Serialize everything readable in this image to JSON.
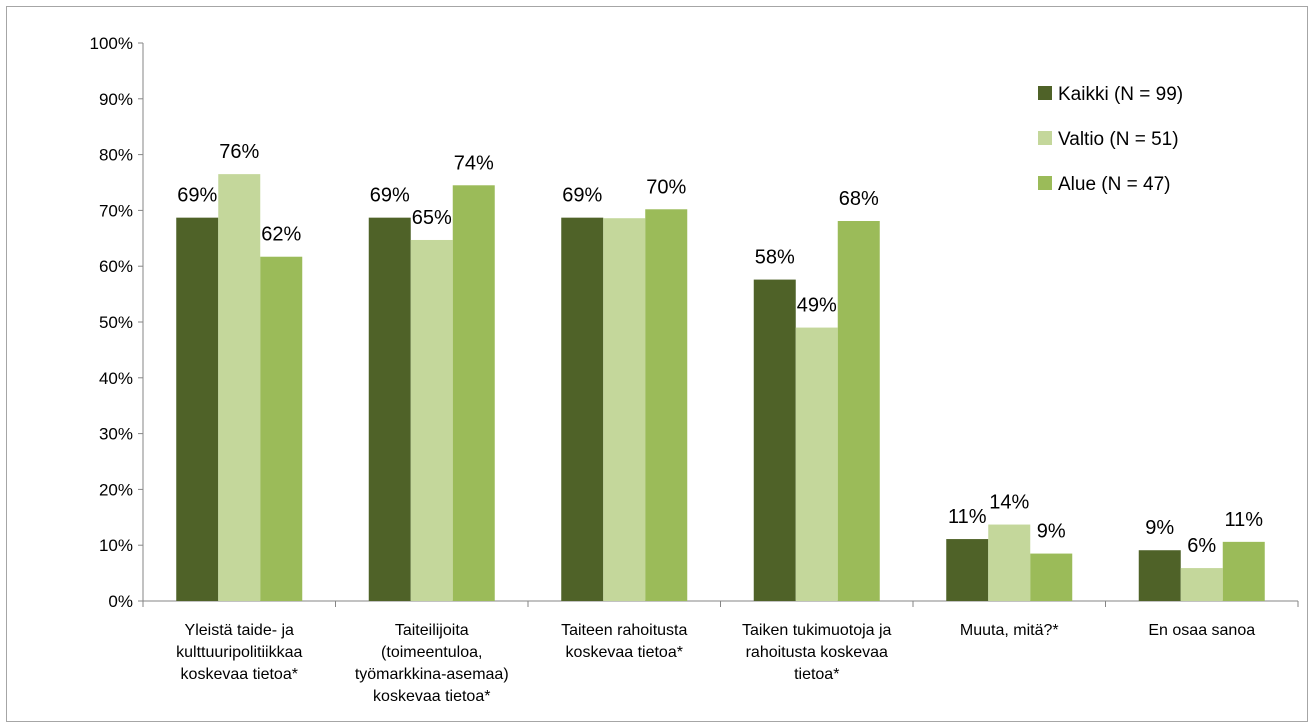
{
  "chart_data": {
    "type": "bar",
    "title": "",
    "xlabel": "",
    "ylabel": "",
    "ylim": [
      0,
      100
    ],
    "yticks": [
      "0%",
      "10%",
      "20%",
      "30%",
      "40%",
      "50%",
      "60%",
      "70%",
      "80%",
      "90%",
      "100%"
    ],
    "grid": false,
    "legend_position": "top-right",
    "categories": [
      [
        "Yleistä taide- ja",
        "kulttuuripolitiikkaa",
        "koskevaa tietoa*"
      ],
      [
        "Taiteilijoita",
        "(toimeentuloa,",
        "työmarkkina-asemaa)",
        "koskevaa tietoa*"
      ],
      [
        "Taiteen rahoitusta",
        "koskevaa tietoa*"
      ],
      [
        "Taiken tukimuotoja ja",
        "rahoitusta koskevaa",
        "tietoa*"
      ],
      [
        "Muuta, mitä?*"
      ],
      [
        "En osaa sanoa"
      ]
    ],
    "series": [
      {
        "name": "Kaikki (N = 99)",
        "color": "#4f6228",
        "values": [
          68.7,
          68.7,
          68.7,
          57.6,
          11.1,
          9.1
        ],
        "labels": [
          "69%",
          "69%",
          "69%",
          "58%",
          "11%",
          "9%"
        ]
      },
      {
        "name": "Valtio (N = 51)",
        "color": "#c4d79b",
        "values": [
          76.5,
          64.7,
          68.6,
          49.0,
          13.7,
          5.9
        ],
        "labels": [
          "76%",
          "65%",
          "",
          "49%",
          "14%",
          "6%"
        ]
      },
      {
        "name": "Alue (N = 47)",
        "color": "#9bbb59",
        "values": [
          61.7,
          74.5,
          70.2,
          68.1,
          8.5,
          10.6
        ],
        "labels": [
          "62%",
          "74%",
          "70%",
          "68%",
          "9%",
          "11%"
        ]
      }
    ]
  }
}
